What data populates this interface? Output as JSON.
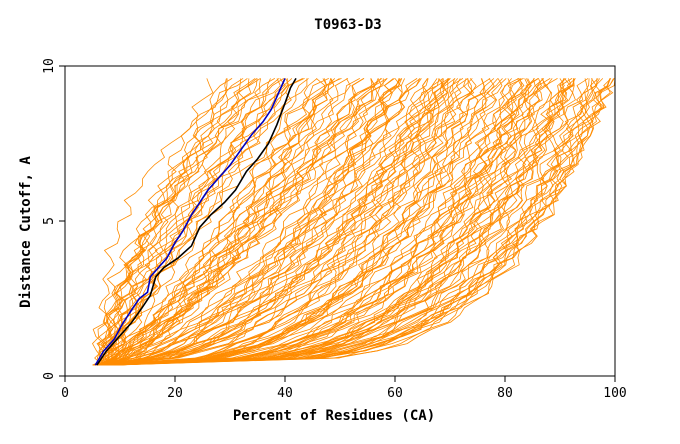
{
  "chart_data": {
    "type": "line",
    "title": "T0963-D3",
    "xlabel": "Percent of Residues (CA)",
    "ylabel": "Distance Cutoff, A",
    "xlim": [
      0,
      100
    ],
    "ylim": [
      0,
      10
    ],
    "x_ticks": [
      "0",
      "20",
      "40",
      "60",
      "80",
      "100"
    ],
    "y_ticks": [
      "0",
      "5",
      "10"
    ],
    "grid": false,
    "background_curve_color": "#ff8c00",
    "background_curve_count": 150,
    "series": [
      {
        "color": "#0000c0",
        "points": [
          [
            5.5,
            0.35
          ],
          [
            7,
            0.8
          ],
          [
            9,
            1.2
          ],
          [
            10.5,
            1.7
          ],
          [
            12,
            2.1
          ],
          [
            13.5,
            2.5
          ],
          [
            15,
            2.7
          ],
          [
            15.5,
            3.2
          ],
          [
            17,
            3.5
          ],
          [
            18.5,
            3.8
          ],
          [
            20,
            4.3
          ],
          [
            21.5,
            4.7
          ],
          [
            23,
            5.2
          ],
          [
            24.5,
            5.6
          ],
          [
            26,
            6.0
          ],
          [
            28,
            6.4
          ],
          [
            30,
            6.8
          ],
          [
            32,
            7.3
          ],
          [
            34,
            7.8
          ],
          [
            36,
            8.2
          ],
          [
            37.5,
            8.6
          ],
          [
            39,
            9.2
          ],
          [
            40,
            9.6
          ]
        ]
      },
      {
        "color": "#000000",
        "points": [
          [
            5.8,
            0.35
          ],
          [
            7.5,
            0.8
          ],
          [
            10,
            1.3
          ],
          [
            12,
            1.7
          ],
          [
            14,
            2.2
          ],
          [
            15.5,
            2.6
          ],
          [
            16.5,
            3.2
          ],
          [
            18,
            3.5
          ],
          [
            20.5,
            3.8
          ],
          [
            23,
            4.2
          ],
          [
            24.5,
            4.8
          ],
          [
            26.5,
            5.2
          ],
          [
            29,
            5.6
          ],
          [
            31,
            6.0
          ],
          [
            33,
            6.6
          ],
          [
            35,
            7.0
          ],
          [
            37,
            7.5
          ],
          [
            38.5,
            8.1
          ],
          [
            40,
            8.8
          ],
          [
            41,
            9.3
          ],
          [
            42,
            9.6
          ]
        ]
      }
    ]
  }
}
